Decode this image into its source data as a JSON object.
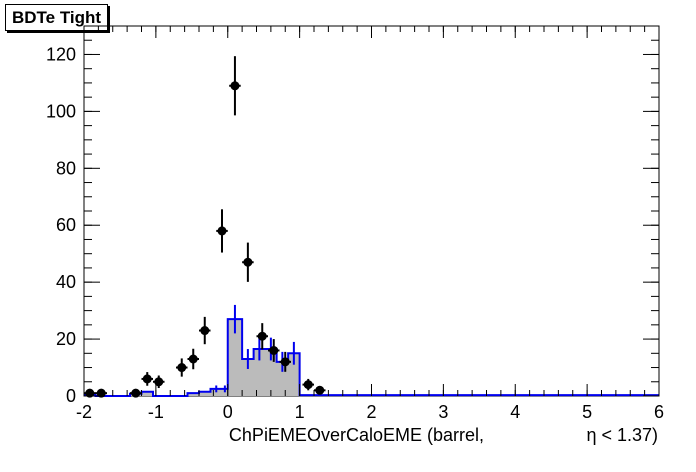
{
  "title": "BDTe Tight",
  "chart_data": {
    "type": "bar",
    "xlabel": "ChPiEMEOverCaloEME (barrel,",
    "xlabel_eta": "η < 1.37)",
    "xlim": [
      -2,
      6
    ],
    "ylim": [
      0,
      130
    ],
    "xticks": [
      -2,
      -1,
      0,
      1,
      2,
      3,
      4,
      5,
      6
    ],
    "yticks": [
      0,
      20,
      40,
      60,
      80,
      100,
      120
    ],
    "bin_width": 0.16,
    "histogram": {
      "color": "#0000ee",
      "fill": "#bbbbbb",
      "bins": [
        {
          "lo": -2.0,
          "hi": -1.84,
          "value": 0.5,
          "err": 0
        },
        {
          "lo": -1.84,
          "hi": -1.36,
          "value": 0,
          "err": 0
        },
        {
          "lo": -1.36,
          "hi": -1.2,
          "value": 0.8,
          "err": 0
        },
        {
          "lo": -1.2,
          "hi": -1.04,
          "value": 1.5,
          "err": 0
        },
        {
          "lo": -1.04,
          "hi": -0.56,
          "value": 0,
          "err": 0
        },
        {
          "lo": -0.56,
          "hi": -0.4,
          "value": 1,
          "err": 0
        },
        {
          "lo": -0.4,
          "hi": -0.24,
          "value": 1.5,
          "err": 0
        },
        {
          "lo": -0.24,
          "hi": -0.08,
          "value": 2.5,
          "err": 1.2
        },
        {
          "lo": -0.08,
          "hi": 0.0,
          "value": 2.5,
          "err": 1.2
        },
        {
          "lo": 0.0,
          "hi": 0.2,
          "value": 27,
          "err": 5
        },
        {
          "lo": 0.2,
          "hi": 0.36,
          "value": 13,
          "err": 3.5
        },
        {
          "lo": 0.36,
          "hi": 0.52,
          "value": 16.5,
          "err": 4
        },
        {
          "lo": 0.52,
          "hi": 0.68,
          "value": 16.5,
          "err": 4
        },
        {
          "lo": 0.68,
          "hi": 0.84,
          "value": 12,
          "err": 3.5
        },
        {
          "lo": 0.84,
          "hi": 1.0,
          "value": 15,
          "err": 4
        },
        {
          "lo": 1.0,
          "hi": 6.0,
          "value": 0.3,
          "err": 0
        }
      ]
    },
    "points": {
      "color": "#000000",
      "x": [
        -1.92,
        -1.76,
        -1.28,
        -1.12,
        -0.96,
        -0.64,
        -0.48,
        -0.32,
        -0.08,
        0.1,
        0.28,
        0.48,
        0.64,
        0.8,
        1.12,
        1.28
      ],
      "y": [
        1,
        1,
        1,
        6,
        5,
        10,
        13,
        23,
        58,
        109,
        47,
        21,
        16,
        12,
        4,
        2
      ],
      "err": [
        1,
        1,
        1,
        2.4,
        2.2,
        3.2,
        3.6,
        4.8,
        7.6,
        10.4,
        6.9,
        4.6,
        4,
        3.5,
        2,
        1.4
      ]
    }
  }
}
